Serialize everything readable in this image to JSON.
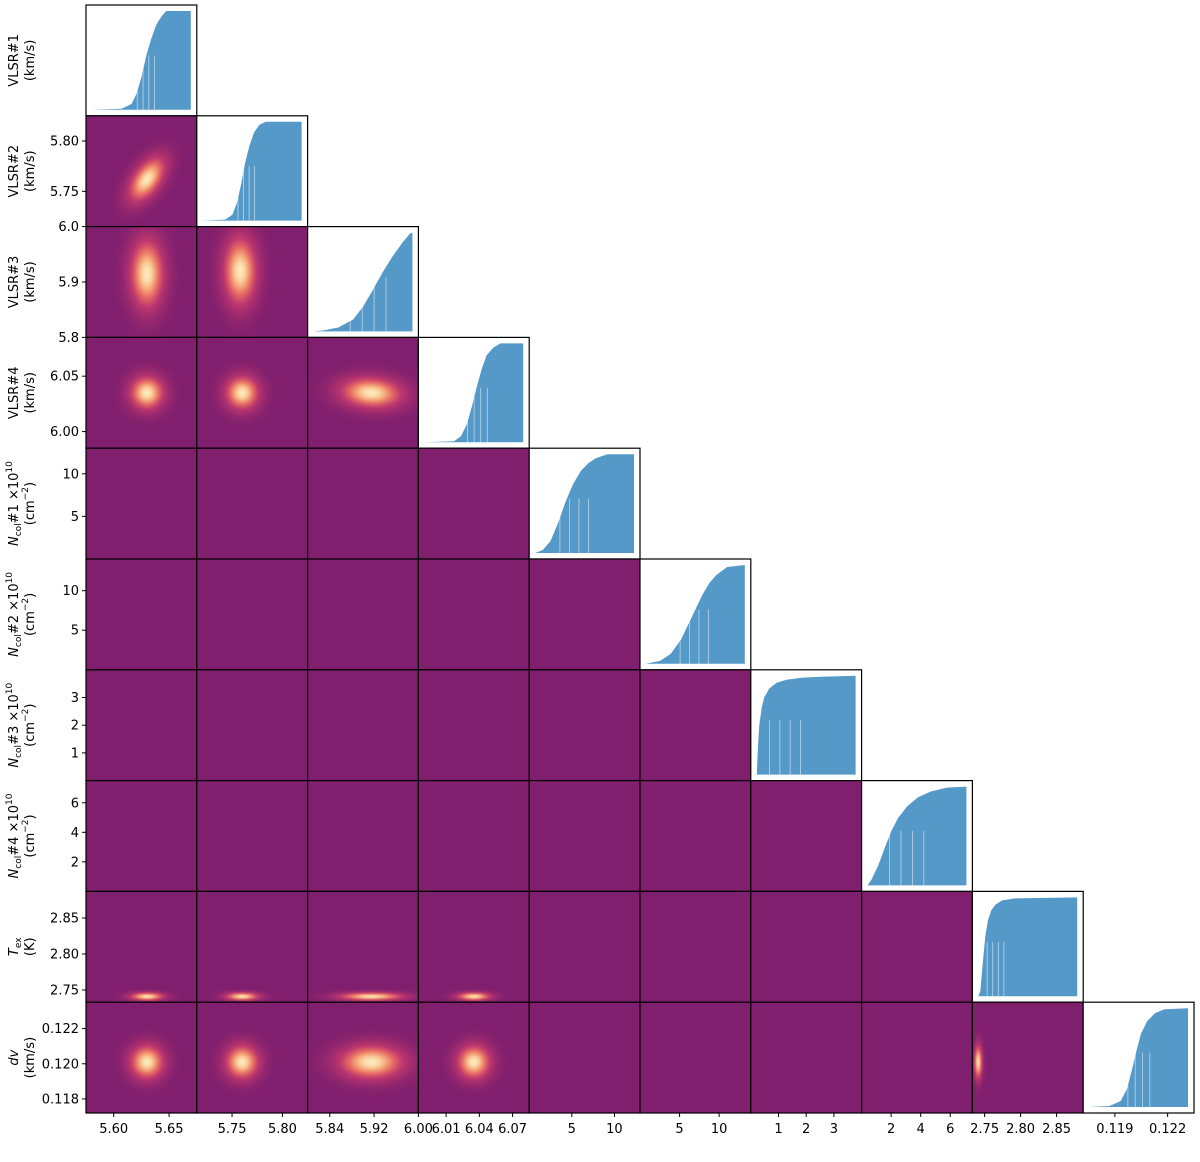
{
  "figure_title": "",
  "params": [
    {
      "key": "vlsr1",
      "name": "VLSR#1",
      "unit": "(km/s)",
      "italic": false
    },
    {
      "key": "vlsr2",
      "name": "VLSR#2",
      "unit": "(km/s)",
      "italic": false
    },
    {
      "key": "vlsr3",
      "name": "VLSR#3",
      "unit": "(km/s)",
      "italic": false
    },
    {
      "key": "vlsr4",
      "name": "VLSR#4",
      "unit": "(km/s)",
      "italic": false
    },
    {
      "key": "ncol1",
      "name": "Ncol#1 ×10^10",
      "unit": "(cm−2)",
      "italic": true,
      "main": "N",
      "sub": "col",
      "rest": "#1 ×10",
      "sup": "10",
      "unit_base": "(cm",
      "unit_sup": "−2"
    },
    {
      "key": "ncol2",
      "name": "Ncol#2 ×10^10",
      "unit": "(cm−2)",
      "italic": true,
      "main": "N",
      "sub": "col",
      "rest": "#2 ×10",
      "sup": "10",
      "unit_base": "(cm",
      "unit_sup": "−2"
    },
    {
      "key": "ncol3",
      "name": "Ncol#3 ×10^10",
      "unit": "(cm−2)",
      "italic": true,
      "main": "N",
      "sub": "col",
      "rest": "#3 ×10",
      "sup": "10",
      "unit_base": "(cm",
      "unit_sup": "−2"
    },
    {
      "key": "ncol4",
      "name": "Ncol#4 ×10^10",
      "unit": "(cm−2)",
      "italic": true,
      "main": "N",
      "sub": "col",
      "rest": "#4 ×10",
      "sup": "10",
      "unit_base": "(cm",
      "unit_sup": "−2"
    },
    {
      "key": "tex",
      "name": "Tex",
      "unit": "(K)",
      "italic": true,
      "main": "T",
      "sub": "ex",
      "rest": "",
      "sup": "",
      "unit_base": "(K)",
      "unit_sup": ""
    },
    {
      "key": "dv",
      "name": "dv",
      "unit": "(km/s)",
      "italic": true,
      "main": "dv",
      "sub": "",
      "rest": "",
      "sup": "",
      "unit_base": "(km/s)",
      "unit_sup": ""
    }
  ],
  "chart_data": {
    "type": "heatmap",
    "description_kind": "corner",
    "colors": {
      "density_bg": "#7f1f6e",
      "density_mid": "#c93f6d",
      "density_peak": "#fbe3b2",
      "marginal_fill": "#5599c8",
      "frame": "#000000"
    },
    "ranges": [
      [
        5.575,
        5.675
      ],
      [
        5.715,
        5.825
      ],
      [
        5.8,
        6.0
      ],
      [
        5.985,
        6.085
      ],
      [
        0.0,
        13.0
      ],
      [
        0.0,
        14.0
      ],
      [
        0.0,
        4.0
      ],
      [
        0.0,
        7.5
      ],
      [
        2.733,
        2.887
      ],
      [
        0.1172,
        0.1235
      ]
    ],
    "x_ticks": [
      {
        "values": [
          5.6,
          5.65
        ],
        "labels": [
          "5.60",
          "5.65"
        ]
      },
      {
        "values": [
          5.75,
          5.8
        ],
        "labels": [
          "5.75",
          "5.80"
        ]
      },
      {
        "values": [
          5.84,
          5.92,
          6.0
        ],
        "labels": [
          "5.84",
          "5.92",
          "6.00"
        ]
      },
      {
        "values": [
          6.01,
          6.04,
          6.07
        ],
        "labels": [
          "6.01",
          "6.04",
          "6.07"
        ]
      },
      {
        "values": [
          5,
          10
        ],
        "labels": [
          "5",
          "10"
        ]
      },
      {
        "values": [
          5,
          10
        ],
        "labels": [
          "5",
          "10"
        ]
      },
      {
        "values": [
          1,
          2,
          3
        ],
        "labels": [
          "1",
          "2",
          "3"
        ]
      },
      {
        "values": [
          2,
          4,
          6
        ],
        "labels": [
          "2",
          "4",
          "6"
        ]
      },
      {
        "values": [
          2.75,
          2.8,
          2.85
        ],
        "labels": [
          "2.75",
          "2.80",
          "2.85"
        ]
      },
      {
        "values": [
          0.119,
          0.122
        ],
        "labels": [
          "0.119",
          "0.122"
        ]
      }
    ],
    "y_ticks": [
      {
        "values": [],
        "labels": []
      },
      {
        "values": [
          5.75,
          5.8
        ],
        "labels": [
          "5.75",
          "5.80"
        ]
      },
      {
        "values": [
          5.8,
          5.9,
          6.0
        ],
        "labels": [
          "5.8",
          "5.9",
          "6.0"
        ]
      },
      {
        "values": [
          6.0,
          6.05
        ],
        "labels": [
          "6.00",
          "6.05"
        ]
      },
      {
        "values": [
          5,
          10
        ],
        "labels": [
          "5",
          "10"
        ]
      },
      {
        "values": [
          5,
          10
        ],
        "labels": [
          "5",
          "10"
        ]
      },
      {
        "values": [
          1,
          2,
          3
        ],
        "labels": [
          "1",
          "2",
          "3"
        ]
      },
      {
        "values": [
          2,
          4,
          6
        ],
        "labels": [
          "2",
          "4",
          "6"
        ]
      },
      {
        "values": [
          2.75,
          2.8,
          2.85
        ],
        "labels": [
          "2.75",
          "2.80",
          "2.85"
        ]
      },
      {
        "values": [
          0.118,
          0.12,
          0.122
        ],
        "labels": [
          "0.118",
          "0.120",
          "0.122"
        ]
      }
    ],
    "marginals": [
      {
        "param": "VLSR#1",
        "cdf_x": [
          5.575,
          5.605,
          5.615,
          5.62,
          5.625,
          5.63,
          5.635,
          5.64,
          5.645,
          5.65,
          5.675
        ],
        "cdf_y": [
          0.0,
          0.01,
          0.06,
          0.16,
          0.33,
          0.55,
          0.72,
          0.86,
          0.94,
          1.0,
          1.0
        ]
      },
      {
        "param": "VLSR#2",
        "cdf_x": [
          5.715,
          5.74,
          5.748,
          5.753,
          5.758,
          5.762,
          5.767,
          5.772,
          5.778,
          5.785,
          5.825
        ],
        "cdf_y": [
          0.0,
          0.01,
          0.06,
          0.18,
          0.38,
          0.58,
          0.76,
          0.89,
          0.97,
          1.0,
          1.0
        ]
      },
      {
        "param": "VLSR#3",
        "cdf_x": [
          5.8,
          5.82,
          5.85,
          5.88,
          5.9,
          5.92,
          5.94,
          5.96,
          5.98,
          5.995,
          6.0
        ],
        "cdf_y": [
          0.0,
          0.01,
          0.04,
          0.12,
          0.25,
          0.42,
          0.6,
          0.76,
          0.9,
          0.99,
          1.0
        ]
      },
      {
        "param": "VLSR#4",
        "cdf_x": [
          5.985,
          6.015,
          6.022,
          6.028,
          6.033,
          6.038,
          6.043,
          6.048,
          6.055,
          6.062,
          6.085
        ],
        "cdf_y": [
          0.0,
          0.01,
          0.06,
          0.18,
          0.36,
          0.56,
          0.74,
          0.88,
          0.96,
          1.0,
          1.0
        ]
      },
      {
        "param": "Ncol#1",
        "cdf_x": [
          0.0,
          1.0,
          2.0,
          3.0,
          4.0,
          5.0,
          6.0,
          7.0,
          8.0,
          9.5,
          13.0
        ],
        "cdf_y": [
          0.0,
          0.03,
          0.12,
          0.3,
          0.52,
          0.7,
          0.83,
          0.91,
          0.96,
          1.0,
          1.0
        ]
      },
      {
        "param": "Ncol#2",
        "cdf_x": [
          0.0,
          2.0,
          3.5,
          5.0,
          6.0,
          7.0,
          8.0,
          9.0,
          10.0,
          11.5,
          14.0
        ],
        "cdf_y": [
          0.0,
          0.03,
          0.1,
          0.25,
          0.4,
          0.55,
          0.7,
          0.82,
          0.9,
          0.98,
          1.0
        ]
      },
      {
        "param": "Ncol#3",
        "cdf_x": [
          0.0,
          0.05,
          0.1,
          0.2,
          0.3,
          0.5,
          0.8,
          1.2,
          1.8,
          2.6,
          4.0
        ],
        "cdf_y": [
          0.0,
          0.3,
          0.5,
          0.68,
          0.78,
          0.87,
          0.93,
          0.96,
          0.98,
          0.99,
          1.0
        ]
      },
      {
        "param": "Ncol#4",
        "cdf_x": [
          0.0,
          0.3,
          0.8,
          1.3,
          1.8,
          2.3,
          3.0,
          3.8,
          4.8,
          6.0,
          7.5
        ],
        "cdf_y": [
          0.0,
          0.06,
          0.2,
          0.38,
          0.55,
          0.68,
          0.8,
          0.89,
          0.95,
          0.99,
          1.0
        ]
      },
      {
        "param": "Tex",
        "cdf_x": [
          2.733,
          2.736,
          2.738,
          2.741,
          2.744,
          2.748,
          2.753,
          2.76,
          2.77,
          2.79,
          2.887
        ],
        "cdf_y": [
          0.0,
          0.05,
          0.2,
          0.42,
          0.62,
          0.77,
          0.87,
          0.93,
          0.97,
          0.99,
          1.0
        ]
      },
      {
        "param": "dv",
        "cdf_x": [
          0.1172,
          0.1185,
          0.1192,
          0.1196,
          0.1199,
          0.1202,
          0.1205,
          0.1209,
          0.1214,
          0.122,
          0.1235
        ],
        "cdf_y": [
          0.0,
          0.01,
          0.06,
          0.18,
          0.36,
          0.56,
          0.74,
          0.87,
          0.95,
          0.99,
          1.0
        ]
      }
    ],
    "densities": [
      {
        "x": "VLSR#1",
        "y": "VLSR#2",
        "mx": 5.63,
        "my": 5.762,
        "sx": 0.012,
        "sy": 0.016,
        "rho": 0.55,
        "shape": "gauss"
      },
      {
        "x": "VLSR#1",
        "y": "VLSR#3",
        "mx": 5.63,
        "my": 5.915,
        "sx": 0.011,
        "sy": 0.045,
        "rho": 0.0,
        "shape": "gauss"
      },
      {
        "x": "VLSR#2",
        "y": "VLSR#3",
        "mx": 5.758,
        "my": 5.92,
        "sx": 0.012,
        "sy": 0.045,
        "rho": 0.0,
        "shape": "gauss"
      },
      {
        "x": "VLSR#1",
        "y": "VLSR#4",
        "mx": 5.63,
        "my": 6.035,
        "sx": 0.011,
        "sy": 0.011,
        "rho": 0.0,
        "shape": "gauss"
      },
      {
        "x": "VLSR#2",
        "y": "VLSR#4",
        "mx": 5.76,
        "my": 6.035,
        "sx": 0.012,
        "sy": 0.011,
        "rho": 0.0,
        "shape": "gauss"
      },
      {
        "x": "VLSR#3",
        "y": "VLSR#4",
        "mx": 5.915,
        "my": 6.035,
        "sx": 0.04,
        "sy": 0.01,
        "rho": -0.1,
        "shape": "gauss"
      },
      {
        "x": "VLSR#1",
        "y": "Ncol#1",
        "mx": 5.63,
        "my": 4.0,
        "sx": 0.011,
        "sy": 1.6,
        "rho": 0.3,
        "shape": "gauss"
      },
      {
        "x": "VLSR#2",
        "y": "Ncol#1",
        "mx": 5.76,
        "my": 4.0,
        "sx": 0.012,
        "sy": 1.7,
        "rho": 0.45,
        "shape": "gauss"
      },
      {
        "x": "VLSR#3",
        "y": "Ncol#1",
        "mx": 5.915,
        "my": 4.0,
        "sx": 0.042,
        "sy": 1.6,
        "rho": 0.0,
        "shape": "gauss"
      },
      {
        "x": "VLSR#4",
        "y": "Ncol#1",
        "mx": 6.035,
        "my": 4.0,
        "sx": 0.011,
        "sy": 1.6,
        "rho": 0.0,
        "shape": "gauss"
      },
      {
        "x": "VLSR#1",
        "y": "Ncol#2",
        "mx": 5.63,
        "my": 7.0,
        "sx": 0.011,
        "sy": 2.0,
        "rho": -0.15,
        "shape": "gauss"
      },
      {
        "x": "VLSR#2",
        "y": "Ncol#2",
        "mx": 5.76,
        "my": 7.0,
        "sx": 0.012,
        "sy": 2.0,
        "rho": -0.25,
        "shape": "gauss"
      },
      {
        "x": "VLSR#3",
        "y": "Ncol#2",
        "mx": 5.915,
        "my": 7.0,
        "sx": 0.045,
        "sy": 2.0,
        "rho": 0.0,
        "shape": "gauss"
      },
      {
        "x": "VLSR#4",
        "y": "Ncol#2",
        "mx": 6.035,
        "my": 7.0,
        "sx": 0.011,
        "sy": 2.0,
        "rho": 0.0,
        "shape": "gauss"
      },
      {
        "x": "Ncol#1",
        "y": "Ncol#2",
        "mx": 4.5,
        "my": 7.0,
        "sx": 1.8,
        "sy": 2.2,
        "rho": 0.85,
        "shape": "gauss"
      },
      {
        "x": "VLSR#1",
        "y": "Ncol#3",
        "mx": 5.63,
        "my": 0.0,
        "sx": 0.011,
        "sy": 0.25,
        "rho": 0.0,
        "shape": "gauss"
      },
      {
        "x": "VLSR#2",
        "y": "Ncol#3",
        "mx": 5.76,
        "my": 0.0,
        "sx": 0.012,
        "sy": 0.25,
        "rho": 0.0,
        "shape": "gauss"
      },
      {
        "x": "VLSR#3",
        "y": "Ncol#3",
        "mx": 5.915,
        "my": 0.0,
        "sx": 0.042,
        "sy": 0.25,
        "rho": 0.0,
        "shape": "gauss"
      },
      {
        "x": "VLSR#4",
        "y": "Ncol#3",
        "mx": 6.035,
        "my": 0.0,
        "sx": 0.011,
        "sy": 0.25,
        "rho": 0.0,
        "shape": "gauss"
      },
      {
        "x": "Ncol#1",
        "y": "Ncol#3",
        "mx": 4.0,
        "my": 0.0,
        "sx": 1.6,
        "sy": 0.25,
        "rho": 0.0,
        "shape": "gauss"
      },
      {
        "x": "Ncol#2",
        "y": "Ncol#3",
        "mx": 7.0,
        "my": 0.0,
        "sx": 2.0,
        "sy": 0.25,
        "rho": 0.0,
        "shape": "gauss"
      },
      {
        "x": "VLSR#1",
        "y": "Ncol#4",
        "mx": 5.63,
        "my": 1.8,
        "sx": 0.011,
        "sy": 1.1,
        "rho": 0.0,
        "shape": "gauss"
      },
      {
        "x": "VLSR#2",
        "y": "Ncol#4",
        "mx": 5.76,
        "my": 1.8,
        "sx": 0.012,
        "sy": 1.1,
        "rho": -0.1,
        "shape": "gauss"
      },
      {
        "x": "VLSR#3",
        "y": "Ncol#4",
        "mx": 5.925,
        "my": 1.8,
        "sx": 0.042,
        "sy": 1.1,
        "rho": -0.55,
        "shape": "gauss"
      },
      {
        "x": "VLSR#4",
        "y": "Ncol#4",
        "mx": 6.035,
        "my": 1.8,
        "sx": 0.011,
        "sy": 1.1,
        "rho": 0.0,
        "shape": "gauss"
      },
      {
        "x": "Ncol#1",
        "y": "Ncol#4",
        "mx": 3.5,
        "my": 1.8,
        "sx": 1.6,
        "sy": 1.1,
        "rho": 0.75,
        "shape": "gauss"
      },
      {
        "x": "Ncol#2",
        "y": "Ncol#4",
        "mx": 7.0,
        "my": 1.8,
        "sx": 2.3,
        "sy": 1.1,
        "rho": 0.8,
        "shape": "gauss"
      },
      {
        "x": "Ncol#3",
        "y": "Ncol#4",
        "mx": 0.0,
        "my": 1.8,
        "sx": 0.15,
        "sy": 1.1,
        "rho": 0.0,
        "shape": "gauss"
      },
      {
        "x": "VLSR#1",
        "y": "Tex",
        "mx": 5.63,
        "my": 2.741,
        "sx": 0.011,
        "sy": 0.004,
        "rho": 0.0,
        "shape": "gauss"
      },
      {
        "x": "VLSR#2",
        "y": "Tex",
        "mx": 5.76,
        "my": 2.741,
        "sx": 0.012,
        "sy": 0.004,
        "rho": 0.0,
        "shape": "gauss"
      },
      {
        "x": "VLSR#3",
        "y": "Tex",
        "mx": 5.915,
        "my": 2.741,
        "sx": 0.042,
        "sy": 0.004,
        "rho": 0.0,
        "shape": "gauss"
      },
      {
        "x": "VLSR#4",
        "y": "Tex",
        "mx": 6.035,
        "my": 2.741,
        "sx": 0.011,
        "sy": 0.004,
        "rho": 0.0,
        "shape": "gauss"
      },
      {
        "x": "Ncol#1",
        "y": "Tex",
        "c": 2.7375,
        "k": 0.11,
        "p": 1.0,
        "sw": 0.0035,
        "xc": 5.5,
        "sxc": 2.5,
        "shape": "curve"
      },
      {
        "x": "Ncol#2",
        "y": "Tex",
        "c": 2.7375,
        "k": 0.18,
        "p": 1.0,
        "sw": 0.0035,
        "xc": 8.5,
        "sxc": 2.8,
        "shape": "curve"
      },
      {
        "x": "Ncol#3",
        "y": "Tex",
        "mx": 0.0,
        "my": 2.741,
        "sx": 0.12,
        "sy": 0.004,
        "rho": 0.0,
        "shape": "gauss"
      },
      {
        "x": "Ncol#4",
        "y": "Tex",
        "c": 2.7375,
        "k": 0.025,
        "p": 1.0,
        "sw": 0.0035,
        "xc": 1.9,
        "sxc": 1.2,
        "shape": "curve"
      },
      {
        "x": "VLSR#1",
        "y": "dv",
        "mx": 5.63,
        "my": 0.1201,
        "sx": 0.011,
        "sy": 0.0007,
        "rho": 0.0,
        "shape": "gauss"
      },
      {
        "x": "VLSR#2",
        "y": "dv",
        "mx": 5.76,
        "my": 0.1201,
        "sx": 0.012,
        "sy": 0.0007,
        "rho": 0.0,
        "shape": "gauss"
      },
      {
        "x": "VLSR#3",
        "y": "dv",
        "mx": 5.915,
        "my": 0.1201,
        "sx": 0.042,
        "sy": 0.0007,
        "rho": 0.0,
        "shape": "gauss"
      },
      {
        "x": "VLSR#4",
        "y": "dv",
        "mx": 6.035,
        "my": 0.1201,
        "sx": 0.011,
        "sy": 0.0007,
        "rho": 0.0,
        "shape": "gauss"
      },
      {
        "x": "Ncol#1",
        "y": "dv",
        "mx": 4.0,
        "my": 0.1201,
        "sx": 1.6,
        "sy": 0.0007,
        "rho": 0.0,
        "shape": "gauss"
      },
      {
        "x": "Ncol#2",
        "y": "dv",
        "mx": 7.0,
        "my": 0.1201,
        "sx": 2.0,
        "sy": 0.0007,
        "rho": 0.0,
        "shape": "gauss"
      },
      {
        "x": "Ncol#3",
        "y": "dv",
        "mx": 0.0,
        "my": 0.1201,
        "sx": 0.12,
        "sy": 0.0007,
        "rho": 0.0,
        "shape": "gauss"
      },
      {
        "x": "Ncol#4",
        "y": "dv",
        "mx": 1.8,
        "my": 0.1201,
        "sx": 1.1,
        "sy": 0.0007,
        "rho": 0.0,
        "shape": "gauss"
      },
      {
        "x": "Tex",
        "y": "dv",
        "mx": 2.741,
        "my": 0.1201,
        "sx": 0.004,
        "sy": 0.0007,
        "rho": 0.0,
        "shape": "gauss"
      }
    ]
  }
}
